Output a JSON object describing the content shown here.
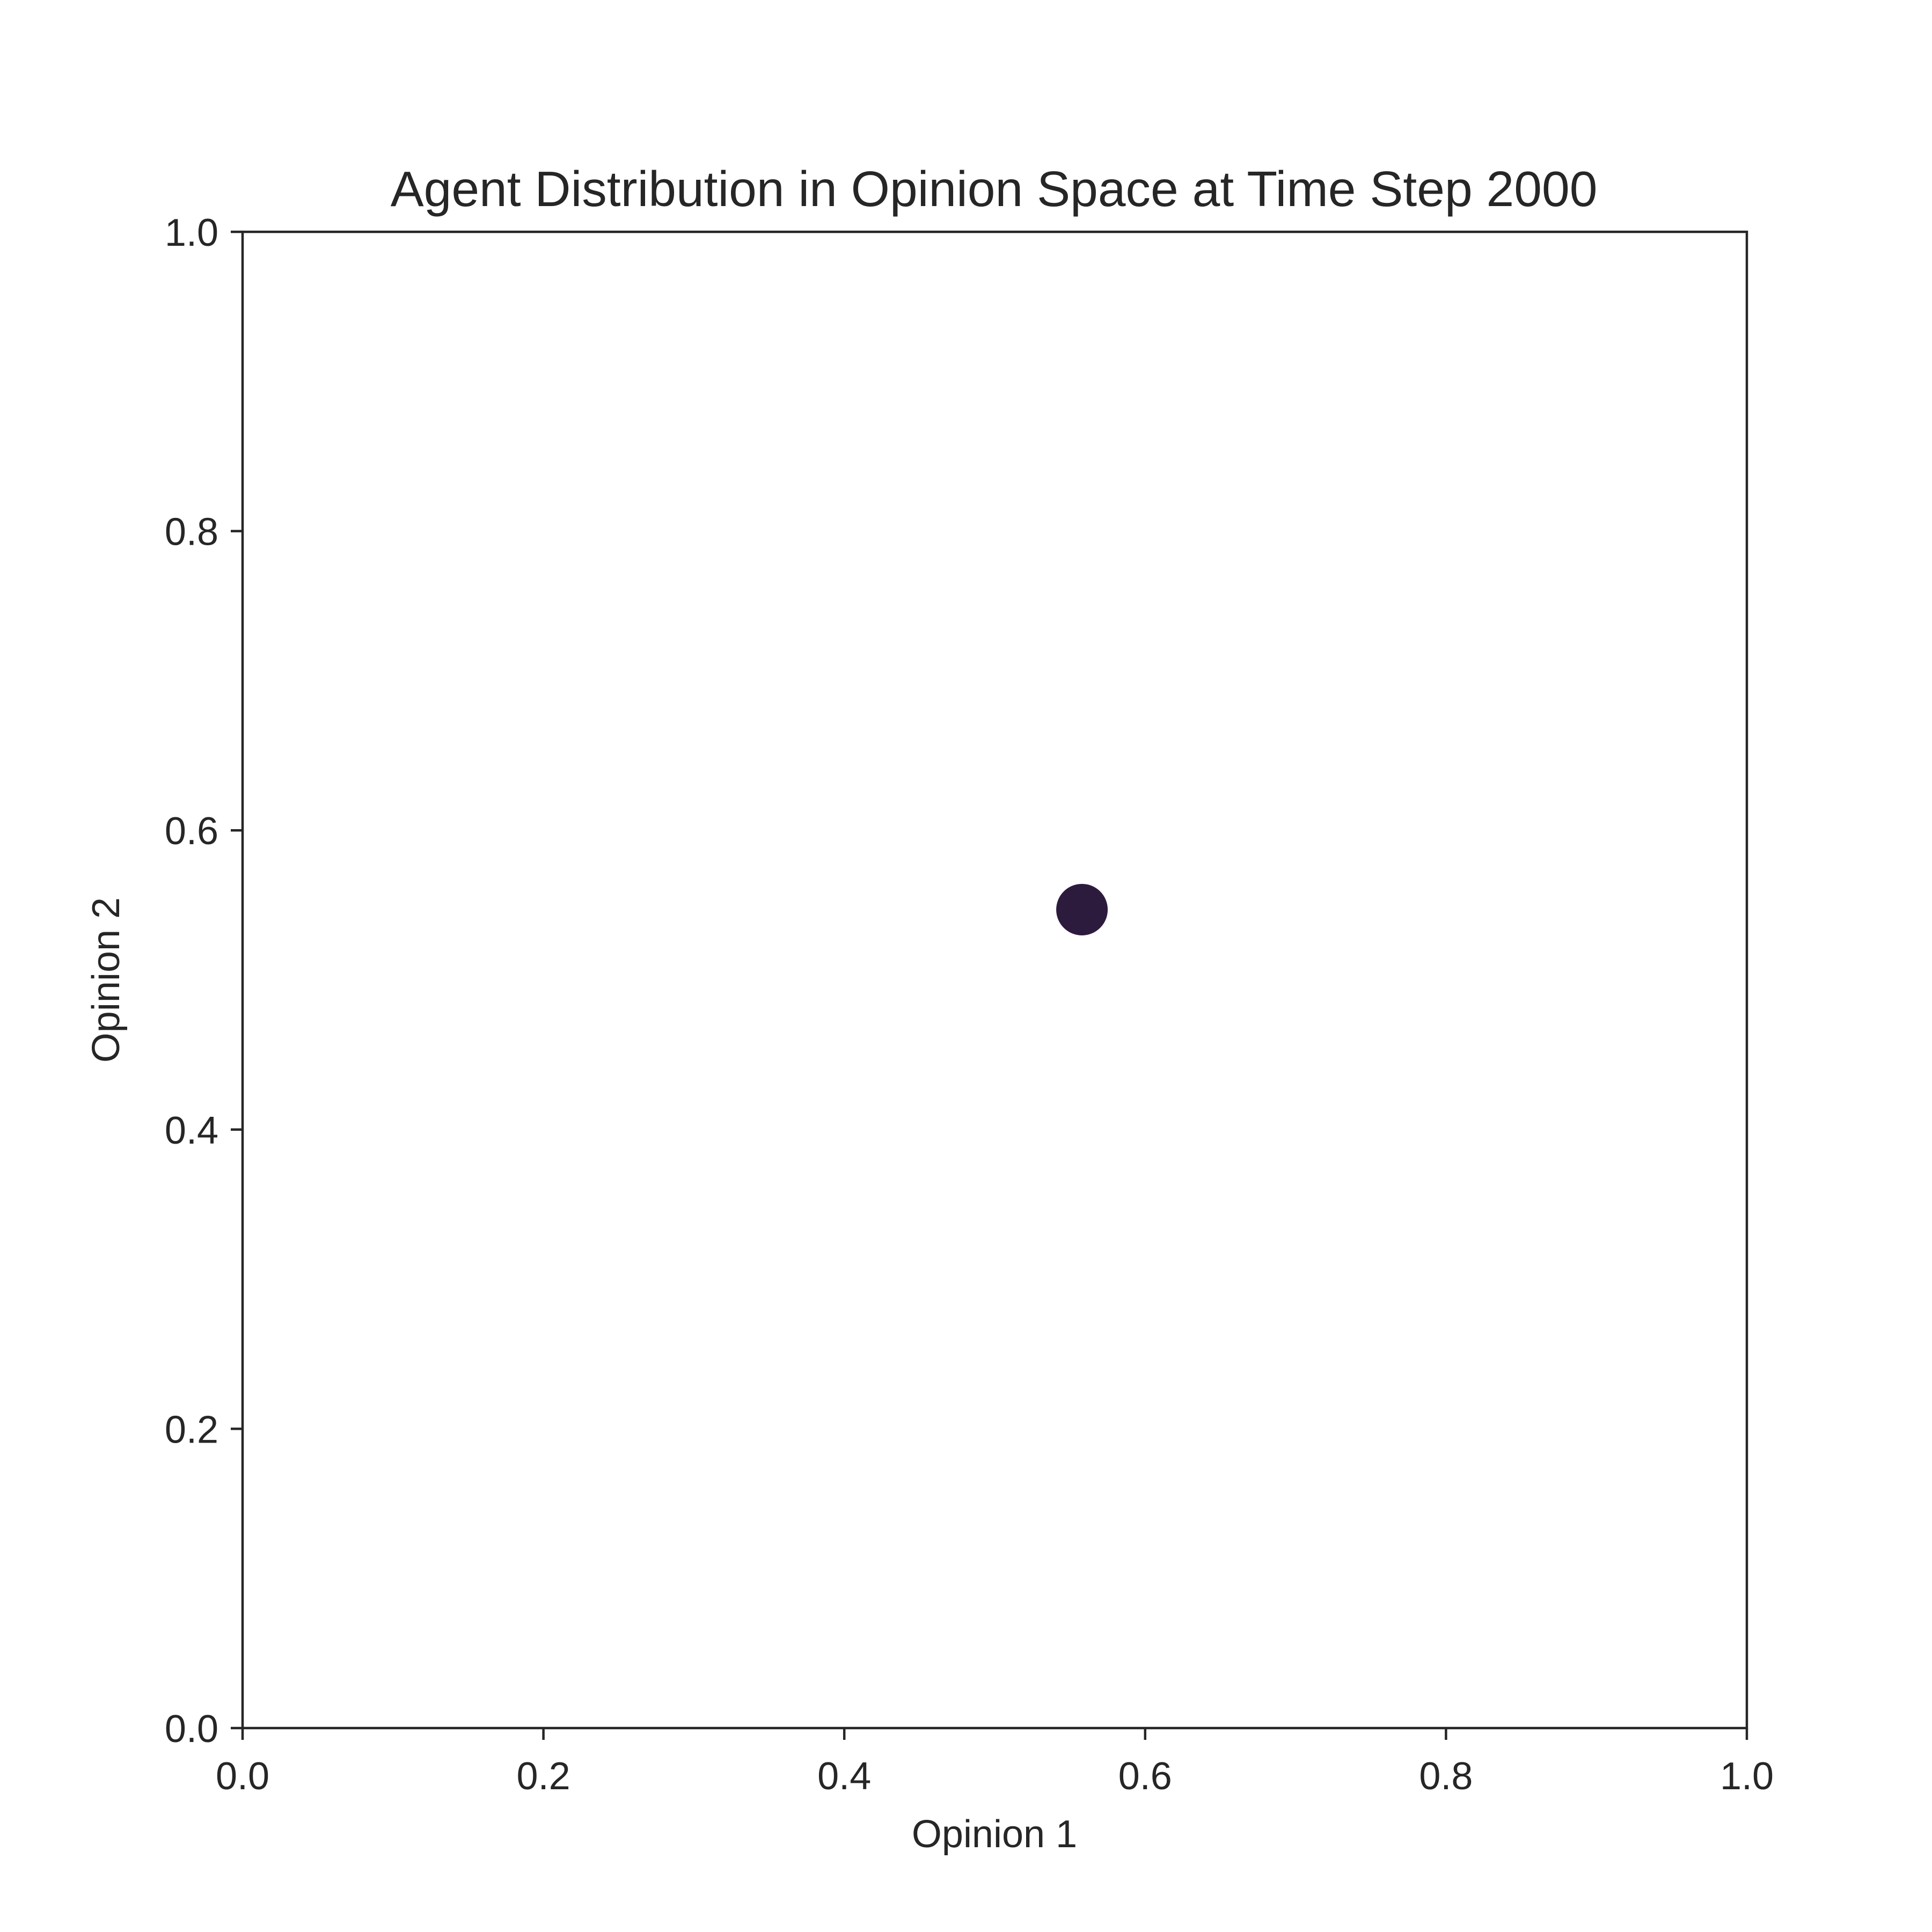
{
  "chart_data": {
    "type": "scatter",
    "title": "Agent Distribution in Opinion Space at Time Step 2000",
    "xlabel": "Opinion 1",
    "ylabel": "Opinion 2",
    "xlim": [
      0.0,
      1.0
    ],
    "ylim": [
      0.0,
      1.0
    ],
    "xticks": [
      "0.0",
      "0.2",
      "0.4",
      "0.6",
      "0.8",
      "1.0"
    ],
    "yticks": [
      "0.0",
      "0.2",
      "0.4",
      "0.6",
      "0.8",
      "1.0"
    ],
    "grid": false,
    "series": [
      {
        "points": [
          {
            "x": 0.558,
            "y": 0.547
          }
        ],
        "color": "#2d1b3e"
      }
    ]
  }
}
